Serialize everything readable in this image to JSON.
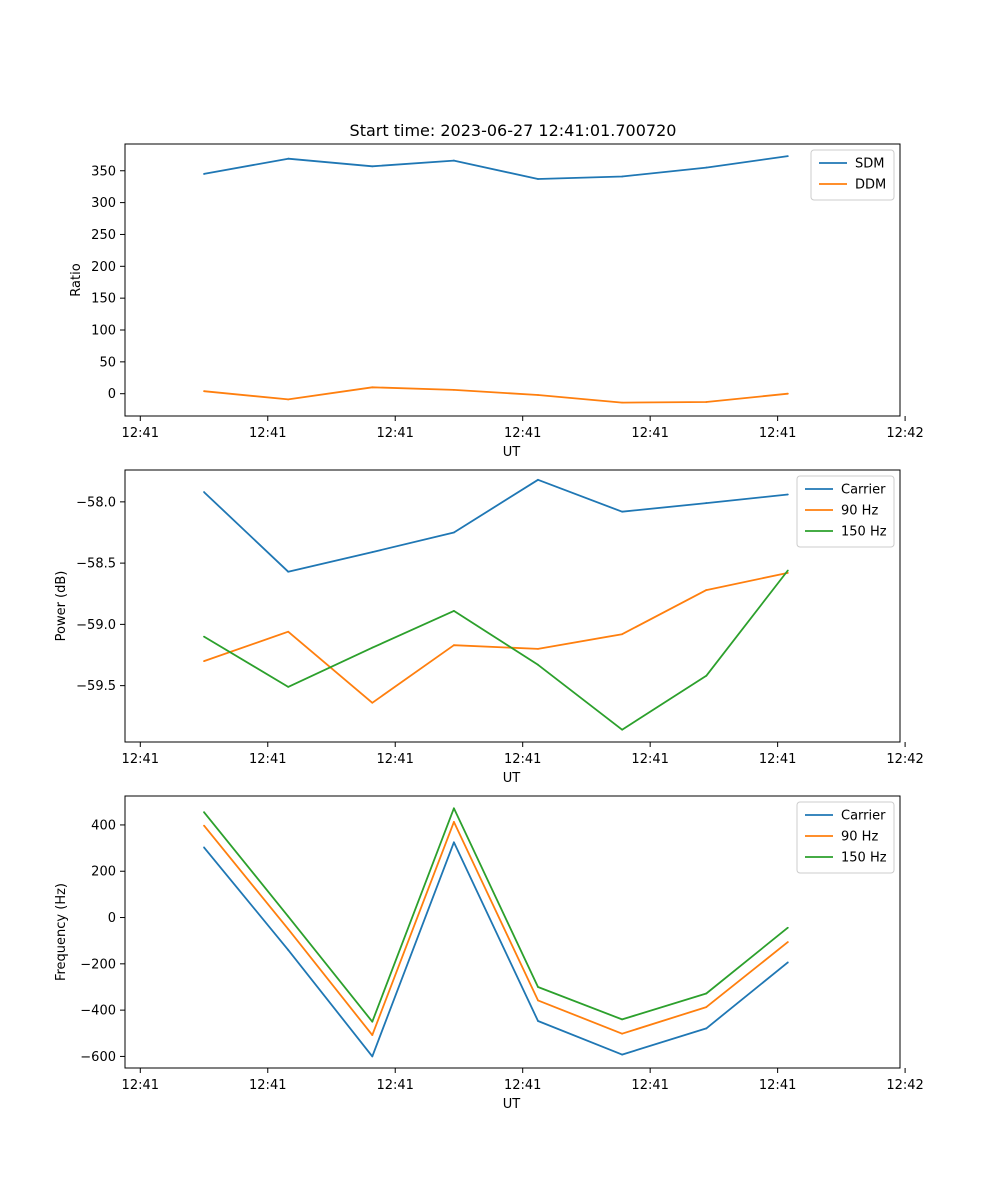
{
  "figure": {
    "suptitle": "Start time: 2023-06-27 12:41:01.700720"
  },
  "colors": {
    "blue": "#1f77b4",
    "orange": "#ff7f0e",
    "green": "#2ca02c"
  },
  "chart_data": [
    {
      "type": "line",
      "title": "",
      "xlabel": "UT",
      "ylabel": "Ratio",
      "x_tick_labels": [
        "12:41",
        "12:41",
        "12:41",
        "12:41",
        "12:41",
        "12:41",
        "12:42"
      ],
      "xlim": [
        -0.06,
        2.98
      ],
      "ylim": [
        -35,
        392
      ],
      "yticks": [
        0,
        50,
        100,
        150,
        200,
        250,
        300,
        350
      ],
      "x": [
        0.25,
        0.58,
        0.91,
        1.23,
        1.56,
        1.89,
        2.22,
        2.54
      ],
      "grid": false,
      "legend_position": "upper right",
      "series": [
        {
          "name": "SDM",
          "color": "#1f77b4",
          "values": [
            345,
            369,
            357,
            366,
            337,
            341,
            355,
            373
          ]
        },
        {
          "name": "DDM",
          "color": "#ff7f0e",
          "values": [
            4,
            -9,
            10,
            6,
            -2,
            -14,
            -13,
            0
          ]
        }
      ]
    },
    {
      "type": "line",
      "title": "",
      "xlabel": "UT",
      "ylabel": "Power (dB)",
      "x_tick_labels": [
        "12:41",
        "12:41",
        "12:41",
        "12:41",
        "12:41",
        "12:41",
        "12:42"
      ],
      "xlim": [
        -0.06,
        2.98
      ],
      "ylim": [
        -59.96,
        -57.74
      ],
      "yticks": [
        -59.5,
        -59.0,
        -58.5,
        -58.0
      ],
      "x": [
        0.25,
        0.58,
        0.91,
        1.23,
        1.56,
        1.89,
        2.22,
        2.54
      ],
      "grid": false,
      "legend_position": "upper right",
      "series": [
        {
          "name": "Carrier",
          "color": "#1f77b4",
          "values": [
            -57.92,
            -58.57,
            -58.41,
            -58.25,
            -57.82,
            -58.08,
            -58.01,
            -57.94
          ]
        },
        {
          "name": "90 Hz",
          "color": "#ff7f0e",
          "values": [
            -59.3,
            -59.06,
            -59.64,
            -59.17,
            -59.2,
            -59.08,
            -58.72,
            -58.58
          ]
        },
        {
          "name": "150 Hz",
          "color": "#2ca02c",
          "values": [
            -59.1,
            -59.51,
            -59.19,
            -58.89,
            -59.33,
            -59.86,
            -59.42,
            -58.56
          ]
        }
      ]
    },
    {
      "type": "line",
      "title": "",
      "xlabel": "UT",
      "ylabel": "Frequency (Hz)",
      "x_tick_labels": [
        "12:41",
        "12:41",
        "12:41",
        "12:41",
        "12:41",
        "12:41",
        "12:42"
      ],
      "xlim": [
        -0.06,
        2.98
      ],
      "ylim": [
        -650,
        525
      ],
      "yticks": [
        -600,
        -400,
        -200,
        0,
        200,
        400
      ],
      "x": [
        0.25,
        0.58,
        0.91,
        1.23,
        1.56,
        1.89,
        2.22,
        2.54
      ],
      "grid": false,
      "legend_position": "upper right",
      "series": [
        {
          "name": "Carrier",
          "color": "#1f77b4",
          "values": [
            303,
            -140,
            -600,
            325,
            -447,
            -592,
            -479,
            -194
          ]
        },
        {
          "name": "90 Hz",
          "color": "#ff7f0e",
          "values": [
            397,
            -50,
            -508,
            413,
            -358,
            -502,
            -387,
            -106
          ]
        },
        {
          "name": "150 Hz",
          "color": "#2ca02c",
          "values": [
            455,
            5,
            -450,
            472,
            -300,
            -440,
            -328,
            -44
          ]
        }
      ]
    }
  ]
}
